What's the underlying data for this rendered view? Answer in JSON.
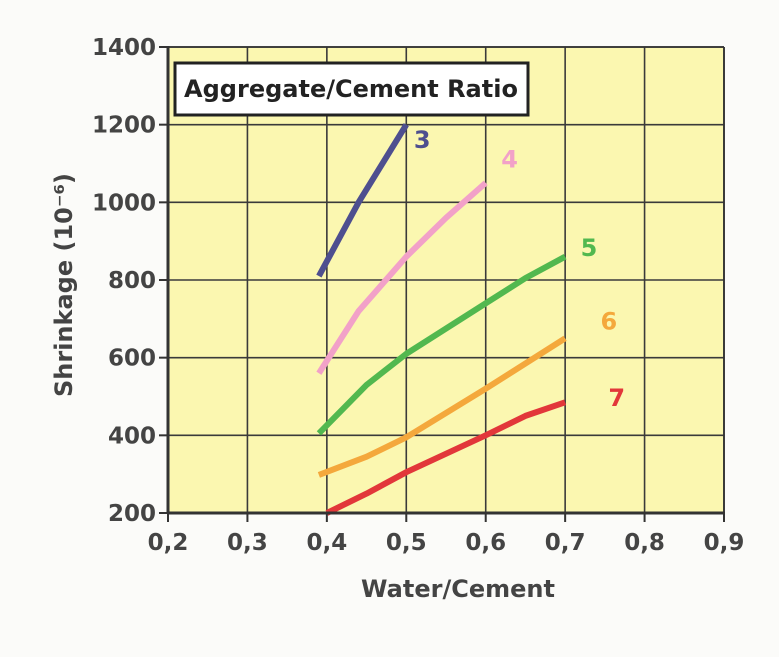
{
  "chart_data": {
    "type": "line",
    "title": "",
    "legend_box_title": "Aggregate/Cement Ratio",
    "xlabel": "Water/Cement",
    "ylabel": "Shrinkage (10⁻⁶)",
    "xlim": [
      0.2,
      0.9
    ],
    "ylim": [
      200,
      1400
    ],
    "x_ticks": [
      "0,2",
      "0,3",
      "0,4",
      "0,5",
      "0,6",
      "0,7",
      "0,8",
      "0,9"
    ],
    "y_ticks": [
      "200",
      "400",
      "600",
      "800",
      "1000",
      "1200",
      "1400"
    ],
    "x_tick_values": [
      0.2,
      0.3,
      0.4,
      0.5,
      0.6,
      0.7,
      0.8,
      0.9
    ],
    "y_tick_values": [
      200,
      400,
      600,
      800,
      1000,
      1200,
      1400
    ],
    "grid": true,
    "plot_background": "#fbf7b0",
    "series": [
      {
        "name": "3",
        "color": "#4e4f8f",
        "x": [
          0.39,
          0.44,
          0.5
        ],
        "y": [
          810,
          1000,
          1200
        ],
        "label_at": [
          0.52,
          1140
        ]
      },
      {
        "name": "4",
        "color": "#f2a1c8",
        "x": [
          0.39,
          0.44,
          0.5,
          0.55,
          0.6
        ],
        "y": [
          560,
          720,
          860,
          960,
          1050
        ],
        "label_at": [
          0.63,
          1090
        ]
      },
      {
        "name": "5",
        "color": "#52b84f",
        "x": [
          0.39,
          0.45,
          0.5,
          0.6,
          0.65,
          0.7
        ],
        "y": [
          405,
          530,
          610,
          740,
          805,
          860
        ],
        "label_at": [
          0.73,
          862
        ]
      },
      {
        "name": "6",
        "color": "#f4a83c",
        "x": [
          0.39,
          0.45,
          0.5,
          0.6,
          0.7
        ],
        "y": [
          298,
          345,
          395,
          520,
          650
        ],
        "label_at": [
          0.755,
          672
        ]
      },
      {
        "name": "7",
        "color": "#e2373a",
        "x": [
          0.4,
          0.45,
          0.5,
          0.6,
          0.65,
          0.7
        ],
        "y": [
          200,
          250,
          305,
          400,
          450,
          485
        ],
        "label_at": [
          0.765,
          475
        ]
      }
    ]
  }
}
